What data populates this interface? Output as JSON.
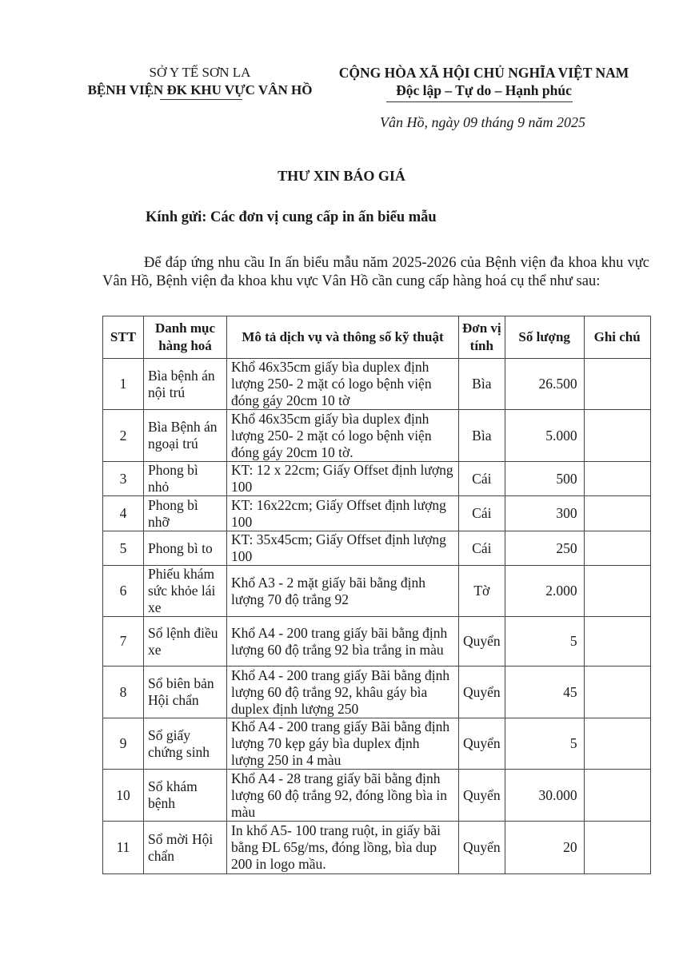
{
  "header": {
    "org_parent": "SỞ Y TẾ SƠN LA",
    "org_name": "BỆNH VIỆN ĐK KHU VỰC VÂN HỒ",
    "national_title": "CỘNG HÒA XÃ HỘI CHỦ NGHĨA VIỆT NAM",
    "motto": "Độc lập – Tự do – Hạnh phúc",
    "date_line": "Vân Hồ, ngày 09 tháng 9 năm 2025"
  },
  "document": {
    "title": "THƯ XIN BÁO GIÁ",
    "recipient": "Kính gửi:  Các đơn vị cung cấp in ấn biểu mẫu",
    "intro": "Để đáp ứng nhu cầu In ấn biểu mẫu năm 2025-2026 của Bệnh viện đa khoa khu vực Vân Hồ, Bệnh viện đa khoa khu vực Vân Hồ cần cung cấp hàng hoá cụ thể như sau:"
  },
  "table": {
    "columns": [
      "STT",
      "Danh mục hàng hoá",
      "Mô tả dịch vụ và thông số kỹ thuật",
      "Đơn vị tính",
      "Số lượng",
      "Ghi chú"
    ],
    "rows": [
      {
        "stt": "1",
        "item": "Bìa bệnh án nội trú",
        "desc": "Khổ 46x35cm giấy bìa duplex định lượng 250- 2 mặt có logo bệnh viện đóng gáy 20cm 10 tờ",
        "unit": "Bìa",
        "qty": "26.500",
        "note": ""
      },
      {
        "stt": "2",
        "item": "Bìa Bệnh án ngoại trú",
        "desc": "Khổ 46x35cm giấy bìa duplex định lượng 250- 2 mặt có logo bệnh viện đóng gáy 20cm 10 tờ.",
        "unit": "Bìa",
        "qty": "5.000",
        "note": ""
      },
      {
        "stt": "3",
        "item": "Phong bì nhỏ",
        "desc": "KT: 12 x 22cm; Giấy Offset định lượng 100",
        "unit": "Cái",
        "qty": "500",
        "note": ""
      },
      {
        "stt": "4",
        "item": "Phong bì nhỡ",
        "desc": "KT: 16x22cm; Giấy Offset định lượng 100",
        "unit": "Cái",
        "qty": "300",
        "note": ""
      },
      {
        "stt": "5",
        "item": "Phong bì to",
        "desc": "KT: 35x45cm; Giấy Offset định lượng 100",
        "unit": "Cái",
        "qty": "250",
        "note": ""
      },
      {
        "stt": "6",
        "item": "Phiếu khám sức khỏe lái xe",
        "desc": "Khổ A3 - 2 mặt giấy bãi bằng định lượng 70 độ trắng 92",
        "unit": "Tờ",
        "qty": "2.000",
        "note": ""
      },
      {
        "stt": "7",
        "item": "Sổ lệnh điều xe",
        "desc": "Khổ A4 - 200 trang giấy bãi bằng định lượng 60 độ trắng 92 bìa trắng in màu",
        "unit": "Quyển",
        "qty": "5",
        "note": ""
      },
      {
        "stt": "8",
        "item": "Sổ biên bản Hội chẩn",
        "desc": "Khổ A4 - 200 trang giấy Bãi bằng định lượng 60 độ trắng 92, khâu gáy bìa duplex định lượng 250",
        "unit": "Quyển",
        "qty": "45",
        "note": ""
      },
      {
        "stt": "9",
        "item": "Sổ giấy chứng sinh",
        "desc": "Khổ A4 - 200 trang giấy Bãi bằng định lượng 70 kẹp gáy bìa duplex định lượng 250 in 4 màu",
        "unit": "Quyển",
        "qty": "5",
        "note": ""
      },
      {
        "stt": "10",
        "item": "Sổ khám bệnh",
        "desc": "Khổ A4 - 28 trang giấy bãi bằng định lượng 60 độ trắng 92, đóng lồng bìa in màu",
        "unit": "Quyển",
        "qty": "30.000",
        "note": ""
      },
      {
        "stt": "11",
        "item": "Sổ mời Hội chẩn",
        "desc": "In khổ A5- 100 trang ruột, in giấy bãi bằng ĐL 65g/ms, đóng lồng, bìa dup 200 in logo mầu.",
        "unit": "Quyển",
        "qty": "20",
        "note": ""
      }
    ]
  }
}
